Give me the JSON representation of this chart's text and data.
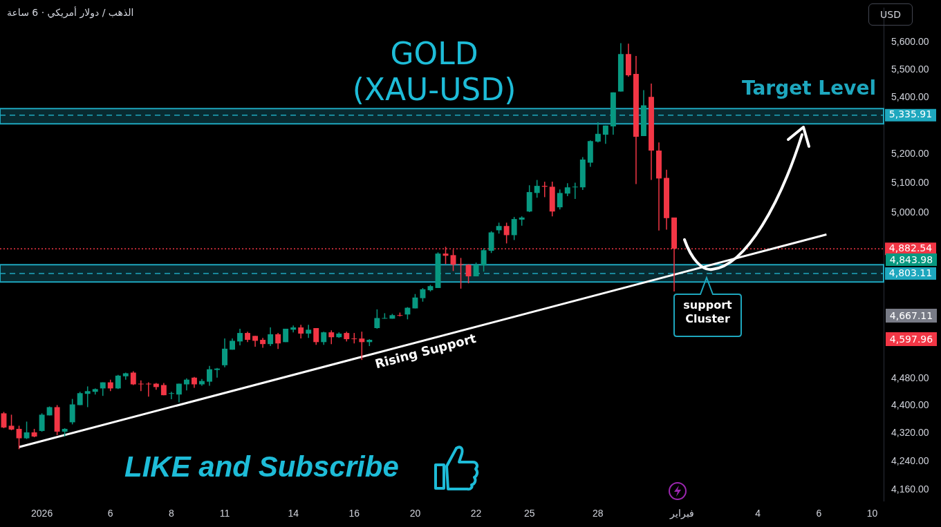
{
  "chart_data": {
    "type": "candlestick",
    "title": "GOLD (XAU-USD)",
    "subtitle": "الذهب / دولار أمريكي · 6 ساعة",
    "ylabel": "USD",
    "log": true,
    "ylim": [
      4130,
      5730
    ],
    "yticks": [
      {
        "value": 4160,
        "label": "4,160.00"
      },
      {
        "value": 4240,
        "label": "4,240.00"
      },
      {
        "value": 4320,
        "label": "4,320.00"
      },
      {
        "value": 4400,
        "label": "4,400.00"
      },
      {
        "value": 4480,
        "label": "4,480.00"
      },
      {
        "value": 5000,
        "label": "5,000.00"
      },
      {
        "value": 5100,
        "label": "5,100.00"
      },
      {
        "value": 5200,
        "label": "5,200.00"
      },
      {
        "value": 5400,
        "label": "5,400.00"
      },
      {
        "value": 5500,
        "label": "5,500.00"
      },
      {
        "value": 5600,
        "label": "5,600.00"
      }
    ],
    "categories": [
      null,
      null,
      null,
      null,
      null,
      "2026",
      null,
      null,
      null,
      null,
      null,
      null,
      null,
      null,
      "6",
      null,
      null,
      null,
      null,
      null,
      null,
      null,
      "8",
      null,
      null,
      null,
      null,
      null,
      null,
      "11",
      null,
      null,
      null,
      null,
      null,
      null,
      null,
      null,
      "14",
      null,
      null,
      null,
      null,
      null,
      null,
      null,
      "16",
      null,
      null,
      null,
      null,
      null,
      null,
      null,
      "20",
      null,
      null,
      null,
      null,
      null,
      null,
      null,
      "22",
      null,
      null,
      null,
      null,
      null,
      null,
      "25",
      null,
      null,
      null,
      null,
      null,
      null,
      null,
      null,
      "28",
      null,
      null,
      null,
      null,
      null,
      null,
      null,
      null,
      null,
      null,
      "فبراير",
      null,
      null,
      null,
      null,
      null,
      null,
      null,
      null,
      null,
      "4",
      null,
      null,
      null,
      null,
      null,
      null,
      null,
      "6",
      null,
      null,
      null,
      null,
      null,
      null,
      "10",
      null
    ],
    "ohlc": [
      [
        4377,
        4381,
        4334,
        4336
      ],
      [
        4341,
        4373,
        4328,
        4330
      ],
      [
        4332,
        4341,
        4274,
        4305
      ],
      [
        4305,
        4353,
        4303,
        4322
      ],
      [
        4322,
        4332,
        4308,
        4310
      ],
      [
        4326,
        4377,
        4324,
        4373
      ],
      [
        4371,
        4397,
        4371,
        4395
      ],
      [
        4395,
        4401,
        4314,
        4324
      ],
      [
        4324,
        4334,
        4310,
        4332
      ],
      [
        4351,
        4419,
        4345,
        4403
      ],
      [
        4401,
        4440,
        4401,
        4436
      ],
      [
        4434,
        4456,
        4395,
        4442
      ],
      [
        4440,
        4450,
        4432,
        4448
      ],
      [
        4450,
        4468,
        4428,
        4468
      ],
      [
        4468,
        4476,
        4442,
        4450
      ],
      [
        4450,
        4490,
        4448,
        4488
      ],
      [
        4486,
        4497,
        4476,
        4495
      ],
      [
        4497,
        4501,
        4460,
        4462
      ],
      [
        4464,
        4474,
        4442,
        4462
      ],
      [
        4464,
        4468,
        4426,
        4462
      ],
      [
        4464,
        4466,
        4446,
        4454
      ],
      [
        4460,
        4466,
        4430,
        4430
      ],
      [
        4434,
        4440,
        4418,
        4436
      ],
      [
        4432,
        4464,
        4409,
        4464
      ],
      [
        4462,
        4480,
        4444,
        4476
      ],
      [
        4482,
        4484,
        4452,
        4462
      ],
      [
        4462,
        4478,
        4458,
        4472
      ],
      [
        4470,
        4517,
        4458,
        4507
      ],
      [
        4505,
        4511,
        4482,
        4509
      ],
      [
        4519,
        4600,
        4513,
        4569
      ],
      [
        4566,
        4600,
        4566,
        4593
      ],
      [
        4591,
        4630,
        4579,
        4617
      ],
      [
        4617,
        4621,
        4589,
        4596
      ],
      [
        4608,
        4608,
        4575,
        4593
      ],
      [
        4596,
        4602,
        4572,
        4583
      ],
      [
        4583,
        4634,
        4577,
        4613
      ],
      [
        4613,
        4617,
        4568,
        4585
      ],
      [
        4589,
        4630,
        4589,
        4630
      ],
      [
        4627,
        4640,
        4619,
        4634
      ],
      [
        4634,
        4642,
        4600,
        4615
      ],
      [
        4615,
        4642,
        4602,
        4627
      ],
      [
        4632,
        4632,
        4581,
        4589
      ],
      [
        4589,
        4621,
        4581,
        4619
      ],
      [
        4619,
        4625,
        4583,
        4604
      ],
      [
        4604,
        4619,
        4602,
        4615
      ],
      [
        4617,
        4621,
        4591,
        4598
      ],
      [
        4600,
        4617,
        4585,
        4598
      ],
      [
        4600,
        4621,
        4535,
        4589
      ],
      [
        4589,
        4598,
        4577,
        4596
      ],
      [
        4632,
        4690,
        4630,
        4663
      ],
      [
        4661,
        4678,
        4661,
        4663
      ],
      [
        4661,
        4676,
        4661,
        4672
      ],
      [
        4672,
        4680,
        4668,
        4670
      ],
      [
        4674,
        4697,
        4659,
        4695
      ],
      [
        4693,
        4738,
        4693,
        4727
      ],
      [
        4725,
        4757,
        4714,
        4753
      ],
      [
        4750,
        4767,
        4746,
        4763
      ],
      [
        4757,
        4871,
        4757,
        4867
      ],
      [
        4867,
        4889,
        4833,
        4860
      ],
      [
        4862,
        4880,
        4811,
        4831
      ],
      [
        4833,
        4853,
        4755,
        4831
      ],
      [
        4831,
        4833,
        4772,
        4794
      ],
      [
        4794,
        4838,
        4794,
        4831
      ],
      [
        4829,
        4884,
        4809,
        4878
      ],
      [
        4876,
        4940,
        4869,
        4936
      ],
      [
        4943,
        4968,
        4932,
        4957
      ],
      [
        4957,
        4968,
        4900,
        4927
      ],
      [
        4927,
        4987,
        4911,
        4980
      ],
      [
        4978,
        4989,
        4958,
        4985
      ],
      [
        5005,
        5093,
        5003,
        5070
      ],
      [
        5067,
        5111,
        5051,
        5091
      ],
      [
        5091,
        5105,
        5053,
        5088
      ],
      [
        5088,
        5105,
        4989,
        5005
      ],
      [
        5019,
        5079,
        5012,
        5067
      ],
      [
        5065,
        5100,
        5056,
        5086
      ],
      [
        5086,
        5102,
        5047,
        5088
      ],
      [
        5086,
        5189,
        5077,
        5181
      ],
      [
        5170,
        5247,
        5156,
        5245
      ],
      [
        5243,
        5311,
        5240,
        5270
      ],
      [
        5267,
        5299,
        5235,
        5299
      ],
      [
        5296,
        5417,
        5267,
        5417
      ],
      [
        5420,
        5597,
        5420,
        5557
      ],
      [
        5557,
        5595,
        5474,
        5479
      ],
      [
        5484,
        5550,
        5097,
        5260
      ],
      [
        5262,
        5425,
        5262,
        5371
      ],
      [
        5401,
        5449,
        5111,
        5212
      ],
      [
        5212,
        5240,
        4942,
        5116
      ],
      [
        5118,
        5146,
        4945,
        4983
      ],
      [
        4985,
        4985,
        4746,
        4883
      ],
      null,
      null,
      null,
      null,
      null,
      null,
      null,
      null,
      null,
      null,
      null,
      null,
      null,
      null,
      null,
      null,
      null,
      null,
      null,
      null,
      null,
      null,
      null,
      null,
      null,
      null,
      null
    ],
    "colors": [
      "#f23645",
      "#f23645",
      "#f23645",
      "#089981",
      "#f23645",
      "#089981",
      "#089981",
      "#f23645",
      "#089981",
      "#089981",
      "#089981",
      "#089981",
      "#089981",
      "#089981",
      "#f23645",
      "#089981",
      "#089981",
      "#f23645",
      "#f23645",
      "#f23645",
      "#f23645",
      "#f23645",
      "#089981",
      "#089981",
      "#089981",
      "#f23645",
      "#089981",
      "#089981",
      "#089981",
      "#089981",
      "#089981",
      "#089981",
      "#f23645",
      "#f23645",
      "#f23645",
      "#089981",
      "#f23645",
      "#089981",
      "#089981",
      "#f23645",
      "#089981",
      "#f23645",
      "#089981",
      "#f23645",
      "#089981",
      "#f23645",
      "#f23645",
      "#f23645",
      "#089981",
      "#089981",
      "#089981",
      "#089981",
      "#f23645",
      "#089981",
      "#089981",
      "#089981",
      "#089981",
      "#089981",
      "#f23645",
      "#f23645",
      "#f23645",
      "#f23645",
      "#089981",
      "#089981",
      "#089981",
      "#089981",
      "#f23645",
      "#089981",
      "#089981",
      "#089981",
      "#089981",
      "#f23645",
      "#f23645",
      "#089981",
      "#089981",
      "#089981",
      "#089981",
      "#089981",
      "#089981",
      "#089981",
      "#089981",
      "#089981",
      "#f23645",
      "#f23645",
      "#089981",
      "#f23645",
      "#f23645",
      "#f23645",
      "#f23645",
      null,
      null,
      null,
      null,
      null,
      null,
      null,
      null,
      null,
      null,
      null,
      null,
      null,
      null,
      null,
      null,
      null,
      null,
      null,
      null,
      null,
      null,
      null,
      null,
      null,
      null,
      null
    ],
    "series": [
      {
        "type": "line",
        "name": "Rising Support",
        "color": "#ffffff",
        "values": [
          null,
          null,
          4280,
          null,
          null,
          null,
          null,
          null,
          null,
          null,
          null,
          null,
          null,
          null,
          null,
          null,
          null,
          null,
          null,
          null,
          null,
          null,
          null,
          null,
          null,
          null,
          null,
          null,
          null,
          null,
          null,
          null,
          null,
          null,
          null,
          null,
          null,
          null,
          null,
          null,
          null,
          null,
          null,
          null,
          null,
          null,
          null,
          null,
          null,
          null,
          null,
          null,
          null,
          null,
          null,
          null,
          null,
          null,
          null,
          null,
          null,
          null,
          null,
          null,
          null,
          null,
          null,
          null,
          null,
          null,
          null,
          null,
          null,
          null,
          null,
          null,
          null,
          null,
          null,
          null,
          null,
          null,
          null,
          null,
          null,
          null,
          null,
          null,
          null,
          null,
          null,
          null,
          null,
          null,
          null,
          null,
          null,
          null,
          null,
          null,
          null,
          null,
          null,
          null,
          null,
          null,
          null,
          null,
          4929,
          null,
          null,
          null,
          null,
          null,
          null,
          null
        ]
      }
    ],
    "ref_lines": [
      {
        "axis": "y",
        "value": 4882.54,
        "label": "4,882.54",
        "color": "#f23645",
        "line_style": "dotted"
      },
      {
        "axis": "y",
        "value": 4803.11,
        "label": "4,803.11",
        "color": "#1ea7be",
        "line_style": "dashed"
      },
      {
        "axis": "y",
        "value": 5335.91,
        "label": "5,335.91",
        "color": "#1ea7be",
        "line_style": "dashed"
      }
    ],
    "bands": [
      {
        "axis": "y",
        "from": 4776,
        "to": 4831,
        "color": "#1ea7be"
      },
      {
        "axis": "y",
        "from": 5305,
        "to": 5359,
        "label": "Target Level",
        "color": "#1ea7be"
      }
    ],
    "annotations": [
      "LIKE and Subscribe",
      "support Cluster",
      "4,843.98",
      "4,667.11",
      "4,597.96"
    ]
  }
}
